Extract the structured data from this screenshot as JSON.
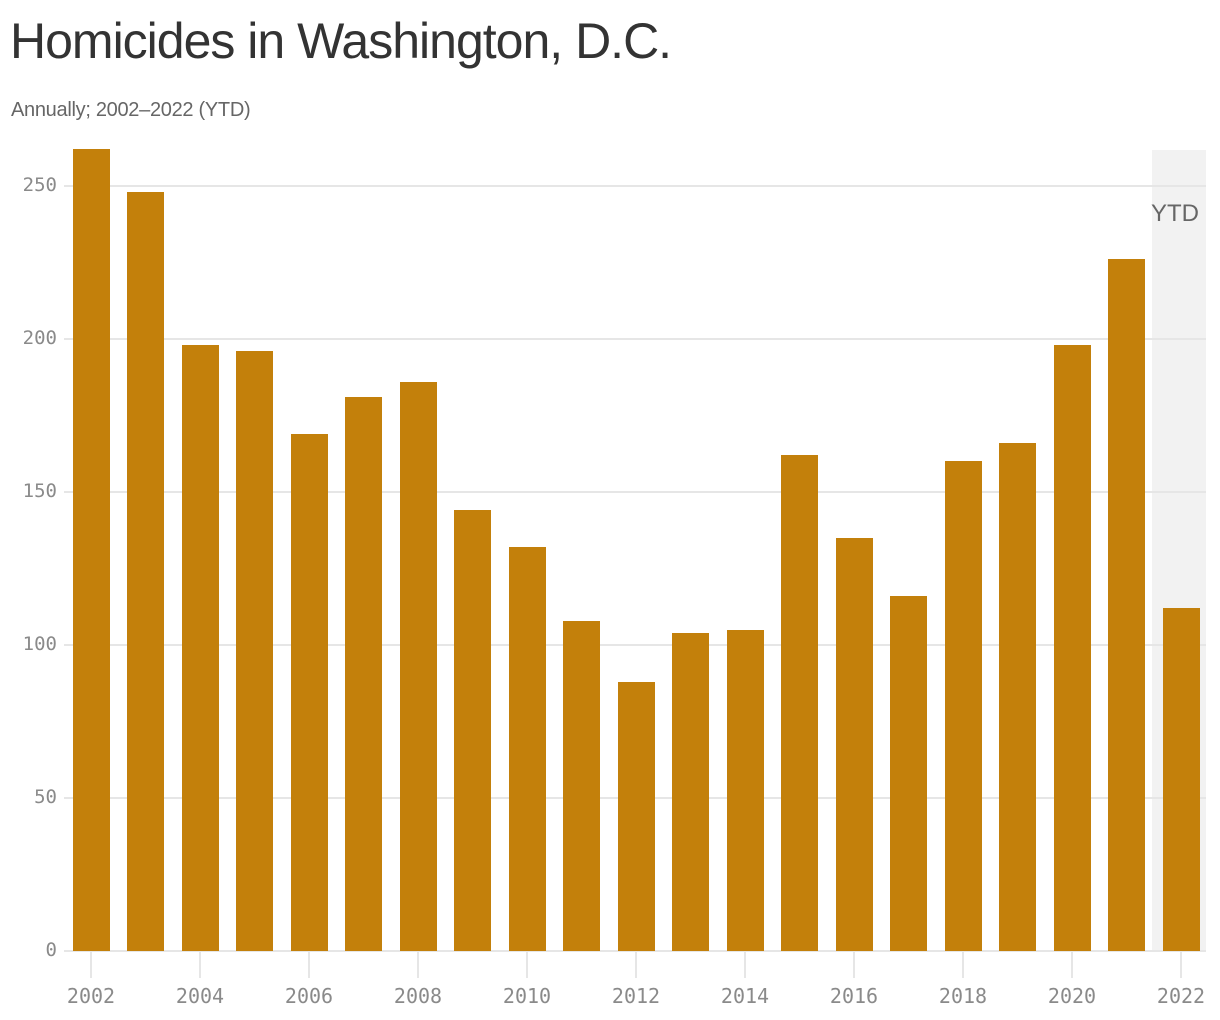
{
  "header": {
    "title": "Homicides in Washington, D.C.",
    "subtitle": "Annually; 2002–2022 (YTD)"
  },
  "annotation": {
    "ytd_label": "YTD"
  },
  "colors": {
    "bar": "#c3800b",
    "ytd_shade": "#f2f2f2",
    "gridline": "#e6e6e6",
    "title": "#333333",
    "tick_label": "#8a8a8a"
  },
  "chart_data": {
    "type": "bar",
    "title": "Homicides in Washington, D.C.",
    "subtitle": "Annually; 2002–2022 (YTD)",
    "xlabel": "",
    "ylabel": "",
    "categories": [
      "2002",
      "2003",
      "2004",
      "2005",
      "2006",
      "2007",
      "2008",
      "2009",
      "2010",
      "2011",
      "2012",
      "2013",
      "2014",
      "2015",
      "2016",
      "2017",
      "2018",
      "2019",
      "2020",
      "2021",
      "2022"
    ],
    "values": [
      262,
      248,
      198,
      196,
      169,
      181,
      186,
      144,
      132,
      108,
      88,
      104,
      105,
      162,
      135,
      116,
      160,
      166,
      198,
      226,
      112
    ],
    "ylim": [
      0,
      262
    ],
    "yticks": [
      0,
      50,
      100,
      150,
      200,
      250
    ],
    "xtick_labels": [
      "2002",
      "2004",
      "2006",
      "2008",
      "2010",
      "2012",
      "2014",
      "2016",
      "2018",
      "2020",
      "2022"
    ],
    "grid": true,
    "legend": null,
    "annotations": [
      {
        "text": "YTD",
        "category": "2022",
        "note": "shaded region marks year-to-date value"
      }
    ]
  }
}
